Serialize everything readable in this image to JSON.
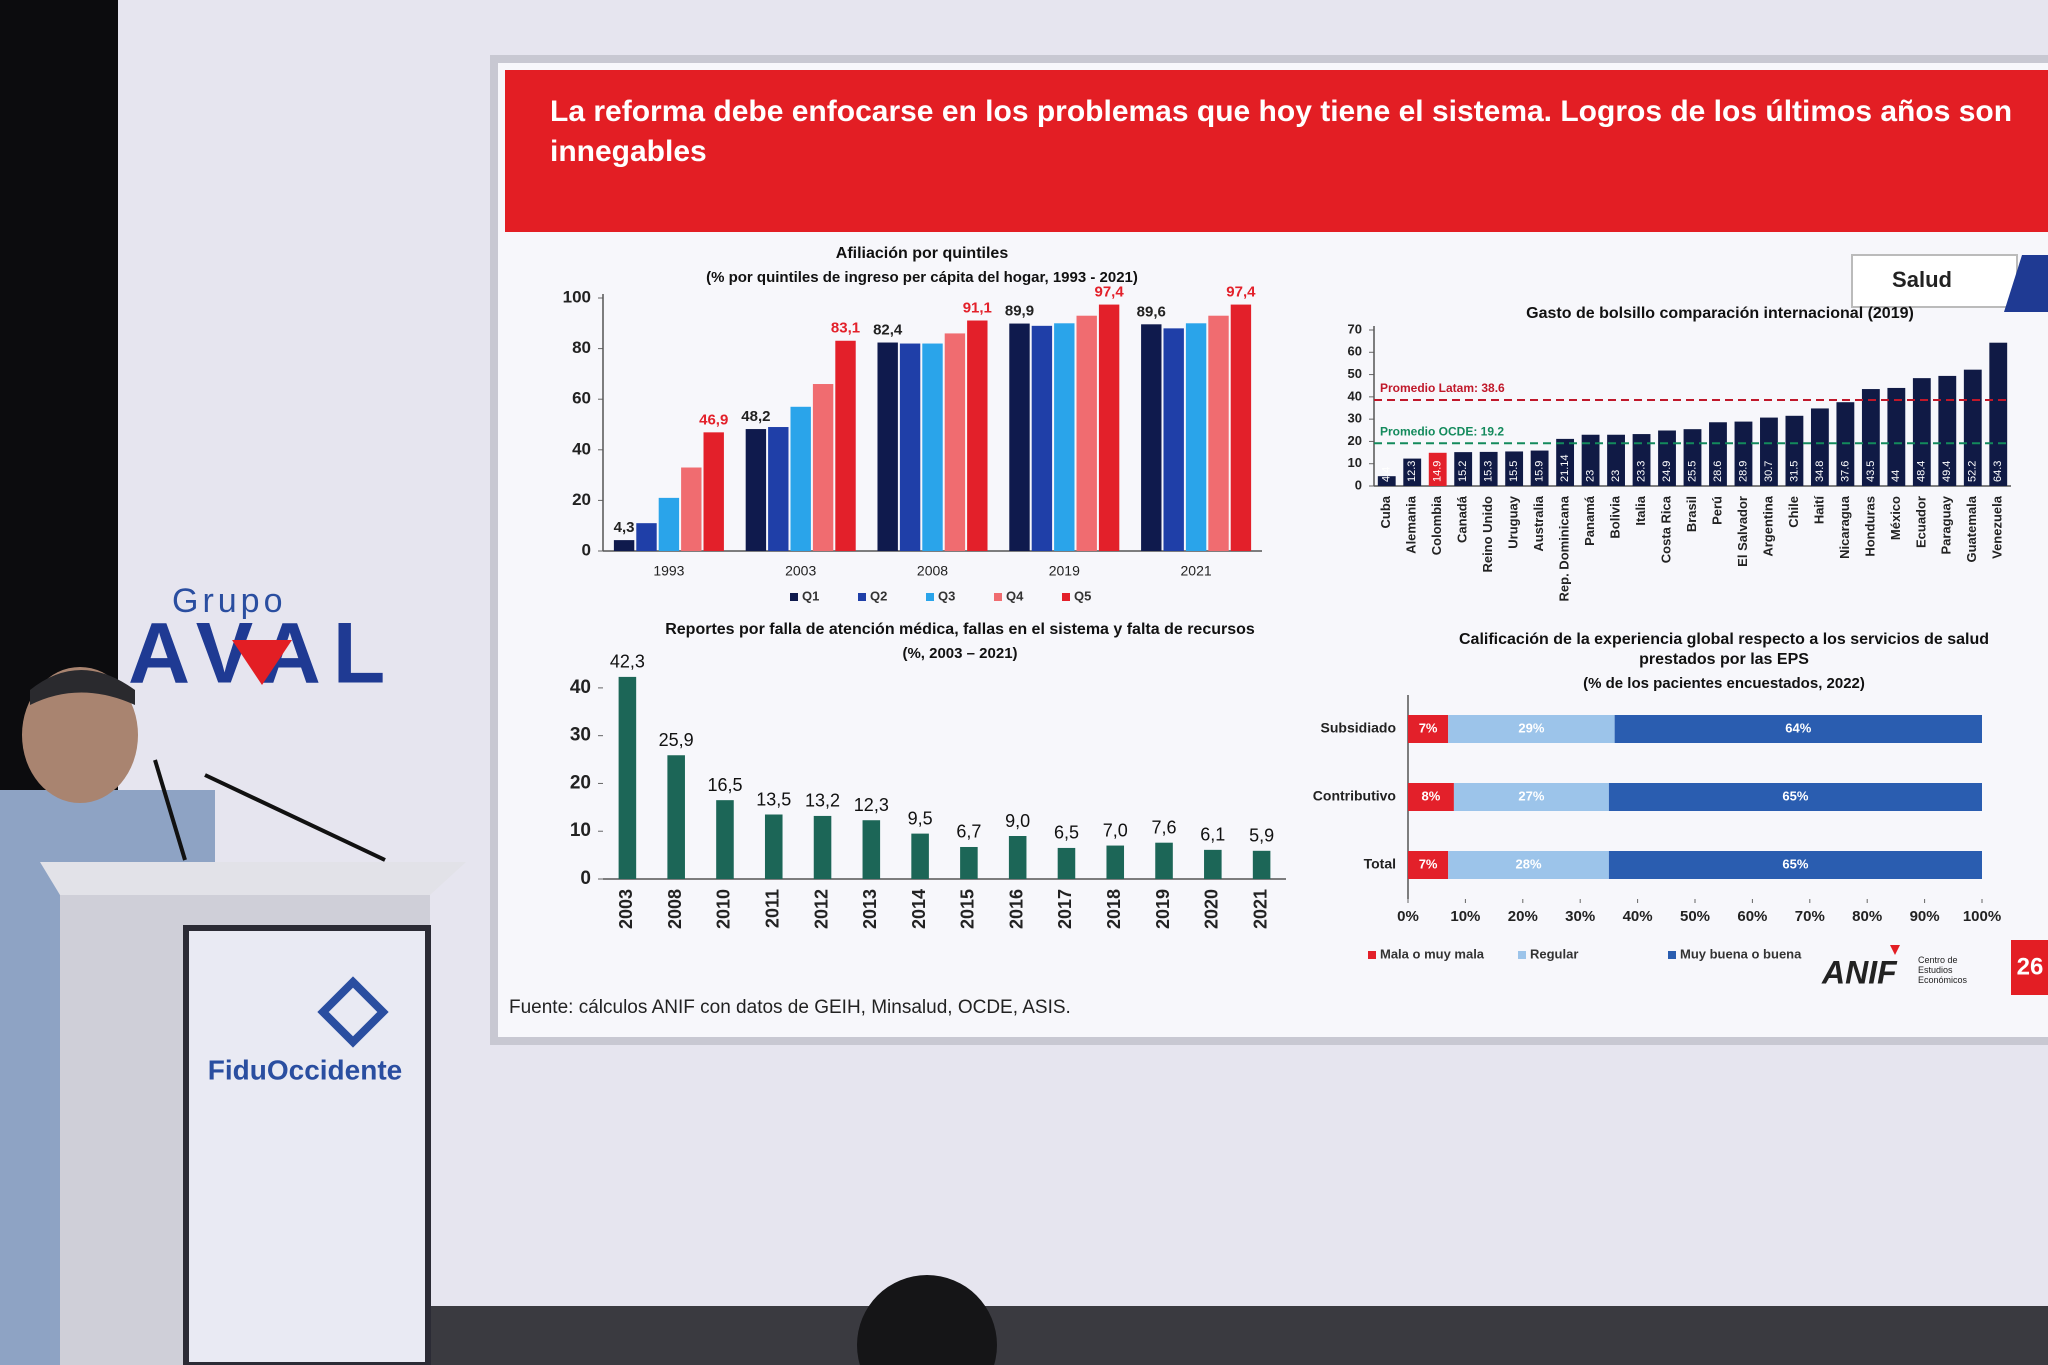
{
  "slide": {
    "title": "La reforma debe enfocarse en los problemas que hoy tiene el sistema. Logros de los últimos años son innegables",
    "section": "Salud",
    "source": "Fuente: cálculos ANIF con datos de GEIH, Minsalud, OCDE, ASIS.",
    "page": "26"
  },
  "logos": {
    "group": "Grupo",
    "brand": "AVAL",
    "podium": "FiduOccidente",
    "anif": "ANIF",
    "anif_subtitle": "Centro de Estudios Económicos"
  },
  "chart_data": [
    {
      "type": "bar",
      "title": "Afiliación por quintiles",
      "subtitle": "(% por quintiles de ingreso per cápita del hogar, 1993 - 2021)",
      "categories": [
        "1993",
        "2003",
        "2008",
        "2019",
        "2021"
      ],
      "series": [
        {
          "name": "Q1",
          "color": "#0f1a4d",
          "values": [
            4.3,
            48.2,
            82.4,
            89.9,
            89.6
          ],
          "value_labels": [
            "4,3",
            "48,2",
            "82,4",
            "89,9",
            "89,6"
          ]
        },
        {
          "name": "Q2",
          "color": "#1f3fa8",
          "values": [
            11,
            49,
            82,
            89,
            88
          ]
        },
        {
          "name": "Q3",
          "color": "#2aa4ea",
          "values": [
            21,
            57,
            82,
            90,
            90
          ]
        },
        {
          "name": "Q4",
          "color": "#f06c70",
          "values": [
            33,
            66,
            86,
            93,
            93
          ]
        },
        {
          "name": "Q5",
          "color": "#e3202a",
          "values": [
            46.9,
            83.1,
            91.1,
            97.4,
            97.4
          ],
          "value_labels": [
            "46,9",
            "83,1",
            "91,1",
            "97,4",
            "97,4"
          ]
        }
      ],
      "ylim": [
        0,
        100
      ],
      "yticks": [
        0,
        20,
        40,
        60,
        80,
        100
      ],
      "legend": "bottom"
    },
    {
      "type": "bar",
      "title": "Gasto de bolsillo comparación internacional (2019)",
      "categories": [
        "Cuba",
        "Alemania",
        "Colombia",
        "Canadá",
        "Reino Unido",
        "Uruguay",
        "Australia",
        "Rep. Dominicana",
        "Panamá",
        "Bolivia",
        "Italia",
        "Costa Rica",
        "Brasil",
        "Perú",
        "El Salvador",
        "Argentina",
        "Chile",
        "Haití",
        "Nicaragua",
        "Honduras",
        "México",
        "Ecuador",
        "Paraguay",
        "Guatemala",
        "Venezuela"
      ],
      "values": [
        4.4,
        12.3,
        14.9,
        15.2,
        15.3,
        15.5,
        15.9,
        21.14,
        23,
        23,
        23.3,
        24.9,
        25.5,
        28.6,
        28.9,
        30.7,
        31.5,
        34.8,
        37.6,
        43.5,
        44,
        48.4,
        49.4,
        52.2,
        64.3
      ],
      "colors": [
        "#101a45",
        "#101a45",
        "#e3202a",
        "#101a45",
        "#101a45",
        "#101a45",
        "#101a45",
        "#101a45",
        "#101a45",
        "#101a45",
        "#101a45",
        "#101a45",
        "#101a45",
        "#101a45",
        "#101a45",
        "#101a45",
        "#101a45",
        "#101a45",
        "#101a45",
        "#101a45",
        "#101a45",
        "#101a45",
        "#101a45",
        "#101a45",
        "#101a45"
      ],
      "value_label_position": "inside",
      "reference_lines": [
        {
          "label": "Promedio Latam: 38.6",
          "value": 38.6,
          "color": "#c0182a"
        },
        {
          "label": "Promedio OCDE: 19.2",
          "value": 19.2,
          "color": "#138a5c"
        }
      ],
      "ylim": [
        0,
        70
      ],
      "yticks": [
        0,
        10,
        20,
        30,
        40,
        50,
        60,
        70
      ]
    },
    {
      "type": "bar",
      "title": "Reportes por falla de atención médica, fallas en el sistema y falta de recursos",
      "subtitle": "(%, 2003 – 2021)",
      "categories": [
        "2003",
        "2008",
        "2010",
        "2011",
        "2012",
        "2013",
        "2014",
        "2015",
        "2016",
        "2017",
        "2018",
        "2019",
        "2020",
        "2021"
      ],
      "values": [
        42.3,
        25.9,
        16.5,
        13.5,
        13.2,
        12.3,
        9.5,
        6.7,
        9.0,
        6.5,
        7.0,
        7.6,
        6.1,
        5.9
      ],
      "value_labels": [
        "42,3",
        "25,9",
        "16,5",
        "13,5",
        "13,2",
        "12,3",
        "9,5",
        "6,7",
        "9,0",
        "6,5",
        "7,0",
        "7,6",
        "6,1",
        "5,9"
      ],
      "color": "#1c6657",
      "value_label_position": "above",
      "ylim": [
        0,
        45
      ],
      "yticks": [
        0,
        10,
        20,
        30,
        40
      ]
    },
    {
      "type": "stacked_barh",
      "title": "Calificación de la experiencia global respecto a los servicios de salud prestados por las EPS",
      "subtitle": "(% de los pacientes encuestados, 2022)",
      "categories": [
        "Subsidiado",
        "Contributivo",
        "Total"
      ],
      "series": [
        {
          "name": "Mala o muy mala",
          "color": "#e3202a",
          "values": [
            7,
            8,
            7
          ],
          "value_labels": [
            "7%",
            "8%",
            "7%"
          ]
        },
        {
          "name": "Regular",
          "color": "#9cc4ea",
          "values": [
            29,
            27,
            28
          ],
          "value_labels": [
            "29%",
            "27%",
            "28%"
          ]
        },
        {
          "name": "Muy buena o buena",
          "color": "#2a5db0",
          "values": [
            64,
            65,
            65
          ],
          "value_labels": [
            "64%",
            "65%",
            "65%"
          ]
        }
      ],
      "xlim": [
        0,
        100
      ],
      "xticks": [
        {
          "value": 0,
          "label": "0%"
        },
        {
          "value": 10,
          "label": "10%"
        },
        {
          "value": 20,
          "label": "20%"
        },
        {
          "value": 30,
          "label": "30%"
        },
        {
          "value": 40,
          "label": "40%"
        },
        {
          "value": 50,
          "label": "50%"
        },
        {
          "value": 60,
          "label": "60%"
        },
        {
          "value": 70,
          "label": "70%"
        },
        {
          "value": 80,
          "label": "80%"
        },
        {
          "value": 90,
          "label": "90%"
        },
        {
          "value": 100,
          "label": "100%"
        }
      ],
      "legend": "bottom"
    }
  ]
}
